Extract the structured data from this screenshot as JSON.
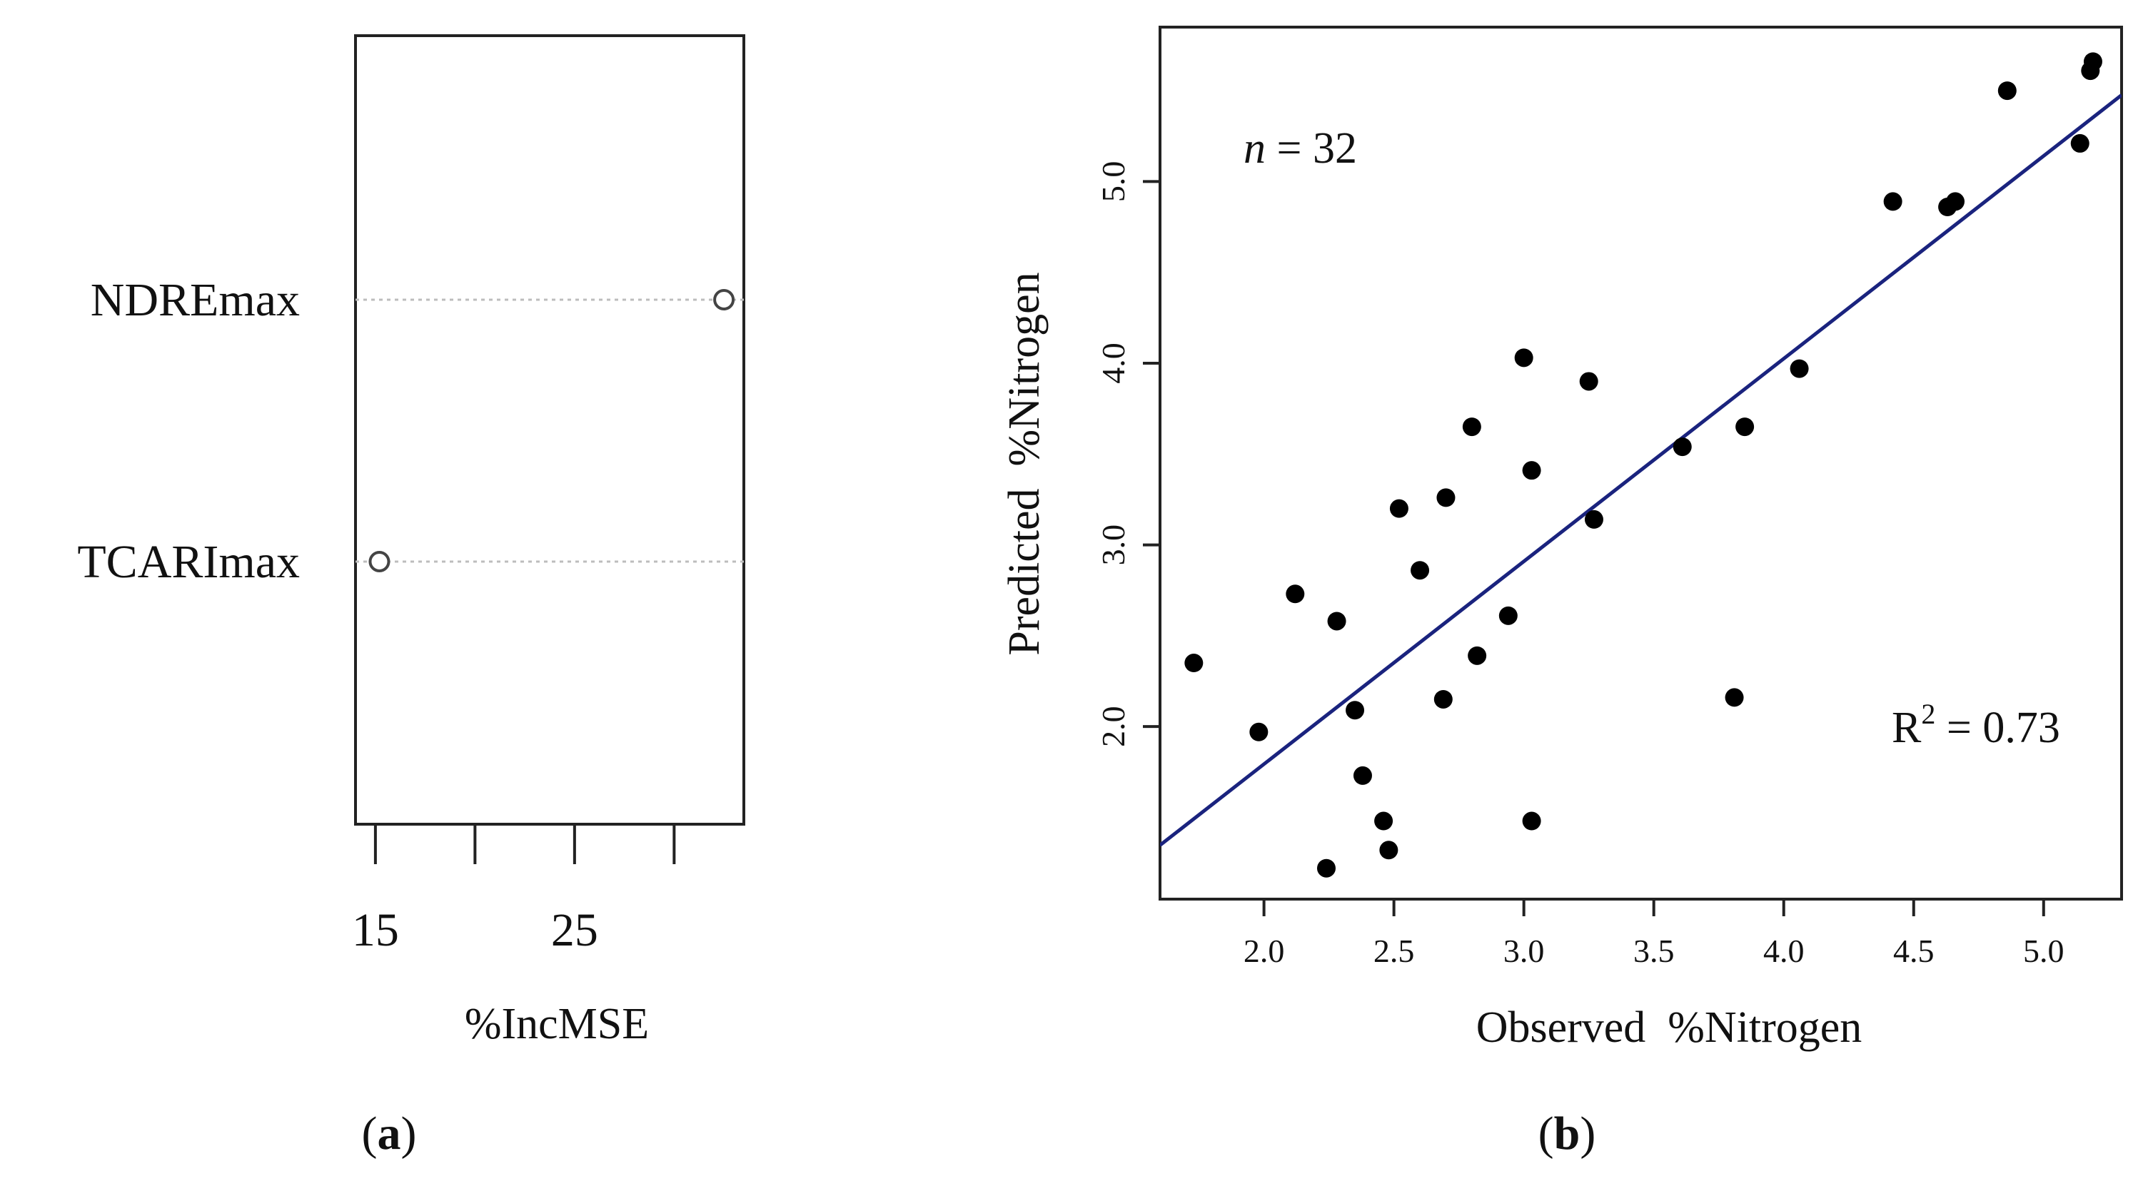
{
  "chart_data": [
    {
      "panel": "a",
      "panel_label_open": "(",
      "panel_label_letter": "a",
      "panel_label_close": ")",
      "type": "scatter",
      "subtype": "dotchart",
      "title": "",
      "xlabel": "%IncMSE",
      "ylabel": "",
      "xlim": [
        14,
        33.5
      ],
      "xticks": [
        15,
        20,
        25,
        30
      ],
      "xtick_labels": [
        "15",
        "25"
      ],
      "xtick_label_values": [
        15,
        25
      ],
      "grid": false,
      "categories": [
        "NDREmax",
        "TCARImax"
      ],
      "values": [
        32.5,
        15.2
      ],
      "marker": "open-circle"
    },
    {
      "panel": "b",
      "panel_label_open": "(",
      "panel_label_letter": "b",
      "panel_label_close": ")",
      "type": "scatter",
      "title": "",
      "xlabel": "Observed  %Nitrogen",
      "ylabel": "Predicted  %Nitrogen",
      "xlim": [
        1.6,
        5.3
      ],
      "ylim": [
        1.05,
        5.85
      ],
      "xticks": [
        2.0,
        2.5,
        3.0,
        3.5,
        4.0,
        4.5,
        5.0
      ],
      "xtick_labels": [
        "2.0",
        "2.5",
        "3.0",
        "3.5",
        "4.0",
        "4.5",
        "5.0"
      ],
      "yticks": [
        2.0,
        3.0,
        4.0,
        5.0
      ],
      "ytick_labels": [
        "2.0",
        "3.0",
        "4.0",
        "5.0"
      ],
      "grid": false,
      "annotations": {
        "n_symbol": "n",
        "n_rest": " = 32",
        "r2_R": "R",
        "r2_sup": "2",
        "r2_rest": " = 0.73"
      },
      "regression_line": {
        "x": [
          1.6,
          5.3
        ],
        "y": [
          1.3468,
          5.4758
        ],
        "color": "#1a237e"
      },
      "points": {
        "x": [
          1.73,
          1.98,
          2.12,
          2.24,
          2.28,
          2.35,
          2.38,
          2.46,
          2.48,
          2.52,
          2.6,
          2.69,
          2.7,
          2.8,
          2.82,
          2.94,
          3.0,
          3.03,
          3.03,
          3.25,
          3.27,
          3.61,
          3.81,
          3.85,
          4.06,
          4.42,
          4.63,
          4.66,
          4.86,
          5.14,
          5.18,
          5.19
        ],
        "y": [
          2.35,
          1.97,
          2.73,
          1.22,
          2.58,
          2.09,
          1.73,
          1.48,
          1.32,
          3.2,
          2.86,
          2.15,
          3.26,
          3.65,
          2.39,
          2.61,
          4.03,
          1.48,
          3.41,
          3.9,
          3.14,
          3.54,
          2.16,
          3.65,
          3.97,
          4.89,
          4.86,
          4.89,
          5.5,
          5.21,
          5.61,
          5.66
        ]
      }
    }
  ]
}
